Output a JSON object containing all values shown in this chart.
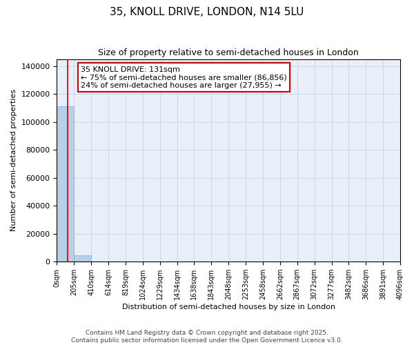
{
  "title": "35, KNOLL DRIVE, LONDON, N14 5LU",
  "subtitle": "Size of property relative to semi-detached houses in London",
  "xlabel": "Distribution of semi-detached houses by size in London",
  "ylabel": "Number of semi-detached properties",
  "property_size": 131,
  "annotation_line1": "35 KNOLL DRIVE: 131sqm",
  "annotation_line2": "← 75% of semi-detached houses are smaller (86,856)",
  "annotation_line3": "24% of semi-detached houses are larger (27,955) →",
  "bin_edges": [
    0,
    205,
    410,
    614,
    819,
    1024,
    1229,
    1434,
    1638,
    1843,
    2048,
    2253,
    2458,
    2662,
    2867,
    3072,
    3277,
    3482,
    3686,
    3891,
    4096
  ],
  "bar_heights": [
    111000,
    4500,
    0,
    0,
    0,
    0,
    0,
    0,
    0,
    0,
    0,
    0,
    0,
    0,
    0,
    0,
    0,
    0,
    0,
    0
  ],
  "bar_color": "#b8cfe8",
  "bar_edgecolor": "#7aafd4",
  "grid_color": "#c8d8ea",
  "bg_color": "#e8eff8",
  "red_line_color": "#cc0000",
  "annotation_box_color": "#cc0000",
  "ylim": [
    0,
    145000
  ],
  "yticks": [
    0,
    20000,
    40000,
    60000,
    80000,
    100000,
    120000,
    140000
  ],
  "footer_line1": "Contains HM Land Registry data © Crown copyright and database right 2025.",
  "footer_line2": "Contains public sector information licensed under the Open Government Licence v3.0."
}
